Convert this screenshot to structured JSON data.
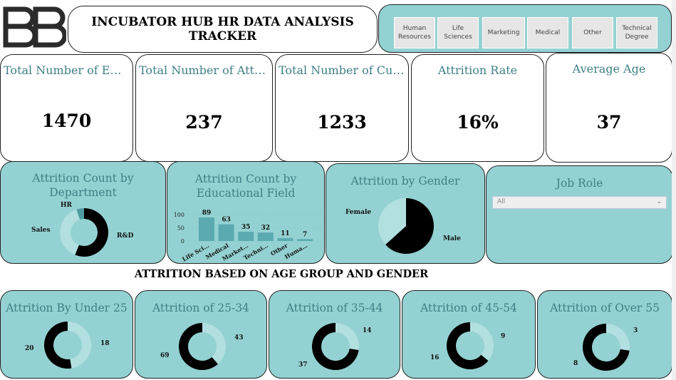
{
  "header": {
    "title": "INCUBATOR HUB HR DATA ANALYSIS TRACKER",
    "filters": [
      "Human Resources",
      "Life Sciences",
      "Marketing",
      "Medical",
      "Other",
      "Technical Degree"
    ]
  },
  "kpis": [
    {
      "label": "Total Number of Empl…",
      "value": "1470"
    },
    {
      "label": "Total Number of Attriti…",
      "value": "237"
    },
    {
      "label": "Total Number of Curr…",
      "value": "1233"
    },
    {
      "label": "Attrition Rate",
      "value": "16%"
    },
    {
      "label": "Average Age",
      "value": "37"
    }
  ],
  "panels": {
    "department": {
      "title": "Attrition Count by Department",
      "labels": {
        "hr": "HR",
        "sales": "Sales",
        "rd": "R&D"
      }
    },
    "education": {
      "title": "Attrition Count by Educational Field"
    },
    "gender": {
      "title": "Attrition by Gender",
      "labels": {
        "female": "Female",
        "male": "Male"
      }
    },
    "job_role": {
      "title": "Job Role",
      "selected": "All"
    }
  },
  "section_heading": "ATTRITION BASED ON AGE GROUP AND GENDER",
  "age_groups": [
    {
      "title": "Attrition By Under 25",
      "light": "18",
      "dark": "20"
    },
    {
      "title": "Attrition of 25-34",
      "light": "43",
      "dark": "69"
    },
    {
      "title": "Attrition of 35-44",
      "light": "14",
      "dark": "37"
    },
    {
      "title": "Attrition of 45-54",
      "light": "9",
      "dark": "16"
    },
    {
      "title": "Attrition of Over 55",
      "light": "3",
      "dark": "8"
    }
  ],
  "colors": {
    "teal": "#94d1d2",
    "title_teal": "#3f7f86",
    "dark": "#000000",
    "light_ring": "#b2dfe0",
    "bar": "#5aaab0"
  },
  "chart_data": [
    {
      "type": "pie",
      "title": "Attrition Count by Department",
      "categories": [
        "R&D",
        "Sales",
        "HR"
      ],
      "values": [
        133,
        92,
        12
      ]
    },
    {
      "type": "bar",
      "title": "Attrition Count by Educational Field",
      "categories": [
        "Life Sci…",
        "Medical",
        "Market…",
        "Techni…",
        "Other",
        "Huma…"
      ],
      "values": [
        89,
        63,
        35,
        32,
        11,
        7
      ],
      "yticks": [
        "100",
        "50",
        "0"
      ],
      "ylim": [
        0,
        100
      ]
    },
    {
      "type": "pie",
      "title": "Attrition by Gender",
      "categories": [
        "Male",
        "Female"
      ],
      "values": [
        150,
        87
      ]
    },
    {
      "type": "pie",
      "title": "Attrition By Under 25",
      "values": [
        18,
        20
      ]
    },
    {
      "type": "pie",
      "title": "Attrition of 25-34",
      "values": [
        43,
        69
      ]
    },
    {
      "type": "pie",
      "title": "Attrition of 35-44",
      "values": [
        14,
        37
      ]
    },
    {
      "type": "pie",
      "title": "Attrition of 45-54",
      "values": [
        9,
        16
      ]
    },
    {
      "type": "pie",
      "title": "Attrition of Over 55",
      "values": [
        3,
        8
      ]
    }
  ]
}
